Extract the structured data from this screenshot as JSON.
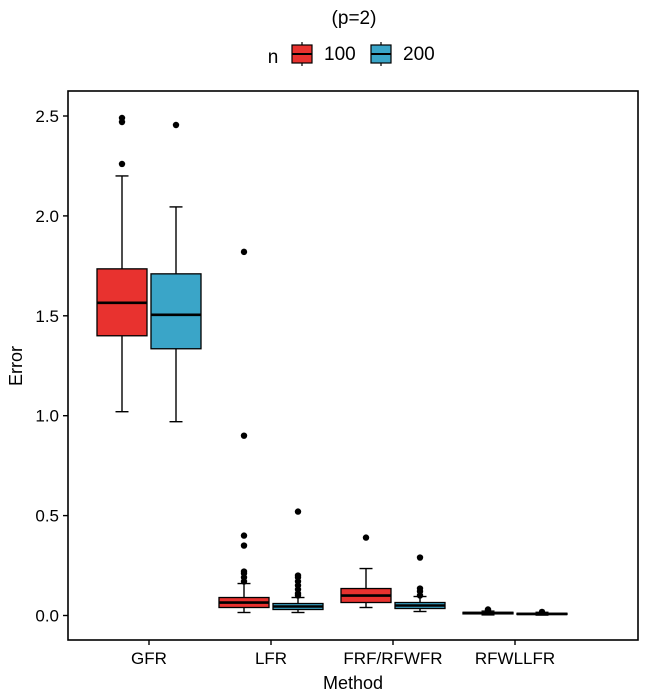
{
  "chart_data": {
    "type": "boxplot",
    "title": "(p=2)",
    "xlabel": "Method",
    "ylabel": "Error",
    "ylim": [
      -0.12,
      2.62
    ],
    "yticks": [
      0.0,
      0.5,
      1.0,
      1.5,
      2.0,
      2.5
    ],
    "ytick_labels": [
      "0.0",
      "0.5",
      "1.0",
      "1.5",
      "2.0",
      "2.5"
    ],
    "grid": false,
    "legend": {
      "position": "top",
      "title": "n",
      "entries": [
        "100",
        "200"
      ]
    },
    "categories": [
      "GFR",
      "LFR",
      "FRF/RFWFR",
      "RFWLLFR"
    ],
    "series": [
      {
        "name": "100",
        "color": "#e8322f",
        "boxes": [
          {
            "whisker_low": 1.02,
            "q1": 1.4,
            "median": 1.565,
            "q3": 1.735,
            "whisker_high": 2.2,
            "outliers": [
              2.26,
              2.47,
              2.49
            ]
          },
          {
            "whisker_low": 0.015,
            "q1": 0.04,
            "median": 0.065,
            "q3": 0.09,
            "whisker_high": 0.16,
            "outliers": [
              0.17,
              0.19,
              0.21,
              0.22,
              0.35,
              0.4,
              0.9,
              1.82
            ]
          },
          {
            "whisker_low": 0.04,
            "q1": 0.065,
            "median": 0.1,
            "q3": 0.135,
            "whisker_high": 0.235,
            "outliers": [
              0.39
            ]
          },
          {
            "whisker_low": 0.003,
            "q1": 0.008,
            "median": 0.012,
            "q3": 0.016,
            "whisker_high": 0.022,
            "outliers": [
              0.025,
              0.03
            ]
          }
        ]
      },
      {
        "name": "200",
        "color": "#3aa5c8",
        "boxes": [
          {
            "whisker_low": 0.97,
            "q1": 1.335,
            "median": 1.505,
            "q3": 1.71,
            "whisker_high": 2.045,
            "outliers": [
              2.455
            ]
          },
          {
            "whisker_low": 0.015,
            "q1": 0.03,
            "median": 0.045,
            "q3": 0.06,
            "whisker_high": 0.09,
            "outliers": [
              0.1,
              0.11,
              0.13,
              0.15,
              0.17,
              0.19,
              0.2,
              0.52
            ]
          },
          {
            "whisker_low": 0.02,
            "q1": 0.035,
            "median": 0.05,
            "q3": 0.065,
            "whisker_high": 0.095,
            "outliers": [
              0.1,
              0.12,
              0.135,
              0.29
            ]
          },
          {
            "whisker_low": 0.002,
            "q1": 0.005,
            "median": 0.008,
            "q3": 0.011,
            "whisker_high": 0.016,
            "outliers": [
              0.018
            ]
          }
        ]
      }
    ]
  }
}
